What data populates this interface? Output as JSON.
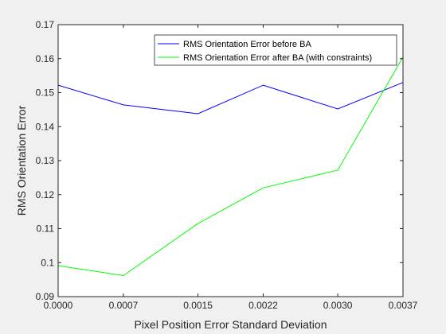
{
  "chart_data": {
    "type": "line",
    "x": [
      0.0,
      0.0007,
      0.0015,
      0.0022,
      0.003,
      0.0037
    ],
    "xtick_labels": [
      "0.0000",
      "0.0007",
      "0.0015",
      "0.0022",
      "0.0030",
      "0.0037"
    ],
    "xlim": [
      0.0,
      0.0037
    ],
    "ylim": [
      0.09,
      0.17
    ],
    "yticks": [
      0.09,
      0.1,
      0.11,
      0.12,
      0.13,
      0.14,
      0.15,
      0.16,
      0.17
    ],
    "ytick_labels": [
      "0.09",
      "0.1",
      "0.11",
      "0.12",
      "0.13",
      "0.14",
      "0.15",
      "0.16",
      "0.17"
    ],
    "xlabel": "Pixel Position Error Standard Deviation",
    "ylabel": "RMS Orientation Error",
    "title": "",
    "grid": false,
    "legend_position": "top-right",
    "series": [
      {
        "name": "RMS Orientation Error before BA",
        "color": "#0000ff",
        "values": [
          0.1522,
          0.1464,
          0.1438,
          0.1522,
          0.1452,
          0.153
        ]
      },
      {
        "name": "RMS Orientation Error after BA (with constraints)",
        "color": "#00ff00",
        "values": [
          0.0991,
          0.0962,
          0.1115,
          0.122,
          0.1272,
          0.1605
        ]
      }
    ]
  }
}
